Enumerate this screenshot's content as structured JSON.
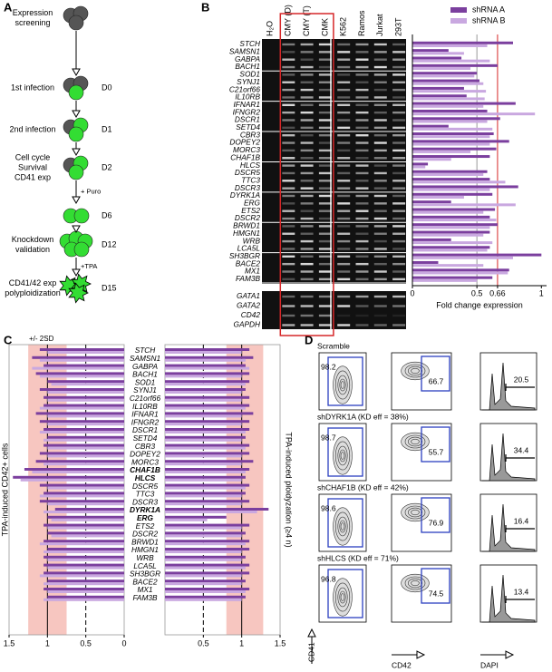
{
  "panel_labels": [
    "A",
    "B",
    "C",
    "D"
  ],
  "panel_a": {
    "steps": [
      {
        "label": [
          "Expression",
          "screening"
        ]
      },
      {
        "label": [
          "1st infection"
        ],
        "day": "D0"
      },
      {
        "label": [
          "2nd infection"
        ],
        "day": "D1"
      },
      {
        "label": [
          "Cell cycle",
          "Survival",
          "CD41 exp"
        ],
        "day": "D2"
      },
      {
        "day": "D6",
        "arrow_label": "+ Puro"
      },
      {
        "label": [
          "Knockdown",
          "validation"
        ],
        "day": "D12"
      },
      {
        "label": [
          "CD41/42 exp",
          "polyploidization"
        ],
        "day": "D15",
        "arrow_label": "+TPA"
      }
    ]
  },
  "panel_b": {
    "lanes": [
      {
        "name": "H₂O"
      },
      {
        "name": "CMY (D)",
        "boxed": true
      },
      {
        "name": "CMY (T)",
        "boxed": true
      },
      {
        "name": "CMK",
        "boxed": true
      },
      {
        "name": "K562"
      },
      {
        "name": "Ramos"
      },
      {
        "name": "Jurkat"
      },
      {
        "name": "293T"
      }
    ],
    "control_genes": [
      "GATA1",
      "GATA2",
      "CD42",
      "GAPDH"
    ]
  },
  "chart_data": [
    {
      "type": "bar",
      "orientation": "horizontal",
      "categories": [
        "STCH",
        "SAMSN1",
        "GABPA",
        "BACH1",
        "SOD1",
        "SYNJ1",
        "C21orf66",
        "IL10RB",
        "IFNAR1",
        "IFNGR2",
        "DSCR1",
        "SETD4",
        "CBR3",
        "DOPEY2",
        "MORC3",
        "CHAF1B",
        "HLCS",
        "DSCR5",
        "TTC3",
        "DSCR3",
        "DYRK1A",
        "ERG",
        "ETS2",
        "DSCR2",
        "BRWD1",
        "HMGN1",
        "WRB",
        "LCA5L",
        "SH3BGR",
        "BACE2",
        "MX1",
        "FAM3B"
      ],
      "category_colors": [
        "#000000",
        "#000000",
        "#2b3fbf",
        "#2b3fbf",
        "#2db82d",
        "#2db82d",
        "#2db82d",
        "#2db82d",
        "#2db82d",
        "#2db82d",
        "#2db82d",
        "#2db82d",
        "#c8202a",
        "#c8202a",
        "#c8202a",
        "#c8202a",
        "#c8202a",
        "#c8202a",
        "#c8202a",
        "#c8202a",
        "#c8202a",
        "#c8202a",
        "#c8202a",
        "#c8202a",
        "#c8202a",
        "#c8202a",
        "#c8202a",
        "#c8202a",
        "#c8202a",
        "#c8202a",
        "#c8202a",
        "#c8202a"
      ],
      "series": [
        {
          "name": "shRNA A",
          "color": "#7b3f9e",
          "values": [
            0.78,
            0.28,
            0.38,
            0.66,
            0.5,
            0.52,
            0.4,
            0.42,
            0.8,
            0.58,
            0.68,
            0.28,
            0.63,
            0.75,
            0.65,
            0.6,
            0.12,
            0.58,
            0.6,
            0.82,
            0.62,
            0.3,
            0.64,
            0.6,
            0.66,
            0.6,
            0.3,
            0.6,
            1.0,
            0.2,
            0.75,
            0.62
          ]
        },
        {
          "name": "shRNA B",
          "color": "#c9a8e0",
          "values": [
            0.58,
            0.4,
            0.6,
            0.45,
            0.48,
            0.55,
            0.57,
            0.56,
            0.55,
            0.95,
            0.58,
            0.62,
            0.6,
            0.6,
            0.45,
            0.3,
            0.1,
            0.55,
            0.72,
            0.6,
            0.4,
            0.8,
            0.55,
            0.65,
            0.6,
            0.55,
            0.62,
            0.58,
            0.78,
            0.55,
            0.74,
            0.5
          ]
        }
      ],
      "xlim": [
        0,
        1.04
      ],
      "xticks": [
        0,
        0.5,
        0.66,
        1
      ],
      "xlabel": "Fold change expression",
      "legend": "top-right",
      "reference_lines": [
        {
          "value": 0.5,
          "color": "#999999"
        },
        {
          "value": 0.66,
          "color": "#d62728"
        }
      ]
    },
    {
      "type": "bar",
      "orientation": "horizontal",
      "categories": [
        "STCH",
        "SAMSN1",
        "GABPA",
        "BACH1",
        "SOD1",
        "SYNJ1",
        "C21orf66",
        "IL10RB",
        "IFNAR1",
        "IFNGR2",
        "DSCR1",
        "SETD4",
        "CBR3",
        "DOPEY2",
        "MORC3",
        "CHAF1B",
        "HLCS",
        "DSCR5",
        "TTC3",
        "DSCR3",
        "DYRK1A",
        "ERG",
        "ETS2",
        "DSCR2",
        "BRWD1",
        "HMGN1",
        "WRB",
        "LCA5L",
        "SH3BGR",
        "BACE2",
        "MX1",
        "FAM3B"
      ],
      "category_colors": [
        "#000000",
        "#000000",
        "#2b3fbf",
        "#2b3fbf",
        "#2db82d",
        "#2db82d",
        "#2db82d",
        "#2db82d",
        "#2db82d",
        "#2db82d",
        "#2db82d",
        "#2db82d",
        "#c8202a",
        "#c8202a",
        "#c8202a",
        "#c8202a",
        "#c8202a",
        "#c8202a",
        "#c8202a",
        "#c8202a",
        "#c8202a",
        "#c8202a",
        "#c8202a",
        "#c8202a",
        "#c8202a",
        "#c8202a",
        "#c8202a",
        "#c8202a",
        "#c8202a",
        "#c8202a",
        "#c8202a",
        "#c8202a"
      ],
      "emphasized": [
        "CHAF1B",
        "HLCS",
        "DYRK1A",
        "ERG"
      ],
      "series": [
        {
          "color": "#7b3f9e",
          "values": [
            1.1,
            1.2,
            1.05,
            1.15,
            1.0,
            1.1,
            1.05,
            1.05,
            1.15,
            1.1,
            1.05,
            1.0,
            1.05,
            1.1,
            1.15,
            1.3,
            1.45,
            1.1,
            1.05,
            1.1,
            0.9,
            1.0,
            1.05,
            1.0,
            1.05,
            1.0,
            1.05,
            1.05,
            1.05,
            1.0,
            1.05,
            1.0
          ]
        },
        {
          "color": "#c9a8e0",
          "values": [
            1.0,
            1.1,
            1.2,
            1.1,
            0.95,
            1.0,
            1.0,
            1.1,
            1.0,
            1.0,
            1.1,
            1.05,
            1.0,
            1.0,
            1.05,
            1.2,
            1.35,
            1.0,
            1.1,
            1.0,
            1.05,
            0.95,
            1.0,
            0.95,
            1.1,
            1.05,
            1.0,
            1.0,
            1.1,
            1.05,
            1.0,
            1.05
          ]
        }
      ],
      "xlim": [
        1.5,
        0
      ],
      "xticks": [
        1.5,
        1,
        0.5,
        0
      ],
      "ylabel": "TPA-induced CD42+ cells",
      "band": {
        "label": "+/- 2SD",
        "range": [
          0.75,
          1.25
        ],
        "color": "#f5b8b0"
      },
      "reference_lines": [
        {
          "value": 1,
          "style": "solid"
        },
        {
          "value": 0.5,
          "style": "dashed"
        }
      ]
    },
    {
      "type": "bar",
      "orientation": "horizontal",
      "series": [
        {
          "color": "#7b3f9e",
          "values": [
            1.1,
            1.15,
            1.05,
            1.1,
            1.1,
            1.05,
            1.1,
            1.1,
            1.15,
            1.1,
            1.1,
            1.05,
            1.1,
            1.1,
            1.15,
            1.1,
            1.05,
            1.1,
            1.05,
            1.1,
            1.35,
            0.8,
            1.1,
            1.05,
            1.1,
            1.1,
            1.05,
            1.1,
            1.1,
            1.05,
            1.1,
            1.05
          ]
        },
        {
          "color": "#c9a8e0",
          "values": [
            1.0,
            1.05,
            1.1,
            1.0,
            1.05,
            1.0,
            1.0,
            1.05,
            1.0,
            1.0,
            1.05,
            1.0,
            1.05,
            1.0,
            1.0,
            1.05,
            1.0,
            1.05,
            1.0,
            1.0,
            1.2,
            0.55,
            1.0,
            1.0,
            1.05,
            1.0,
            1.0,
            1.05,
            1.0,
            1.0,
            1.05,
            1.0
          ]
        }
      ],
      "xlim": [
        0,
        1.5
      ],
      "xticks": [
        0.5,
        1,
        1.5
      ],
      "ylabel": "TPA-induced ploidyzation (≥4 n)",
      "band": {
        "range": [
          0.8,
          1.28
        ],
        "color": "#f5b8b0"
      },
      "reference_lines": [
        {
          "value": 1,
          "style": "solid"
        },
        {
          "value": 0.5,
          "style": "dashed"
        }
      ]
    }
  ],
  "panel_d": {
    "rows": [
      {
        "title": "Scramble",
        "values": [
          "98.2",
          "66.7",
          "20.5"
        ]
      },
      {
        "title": "shDYRK1A (KD eff = 38%)",
        "values": [
          "98.7",
          "55.7",
          "34.4"
        ]
      },
      {
        "title": "shCHAF1B (KD eff = 42%)",
        "values": [
          "98.6",
          "76.9",
          "16.4"
        ]
      },
      {
        "title": "shHLCS (KD eff = 71%)",
        "values": [
          "96.8",
          "74.5",
          "13.4"
        ]
      }
    ],
    "axis_labels": [
      "CD41",
      "CD42",
      "DAPI"
    ]
  }
}
